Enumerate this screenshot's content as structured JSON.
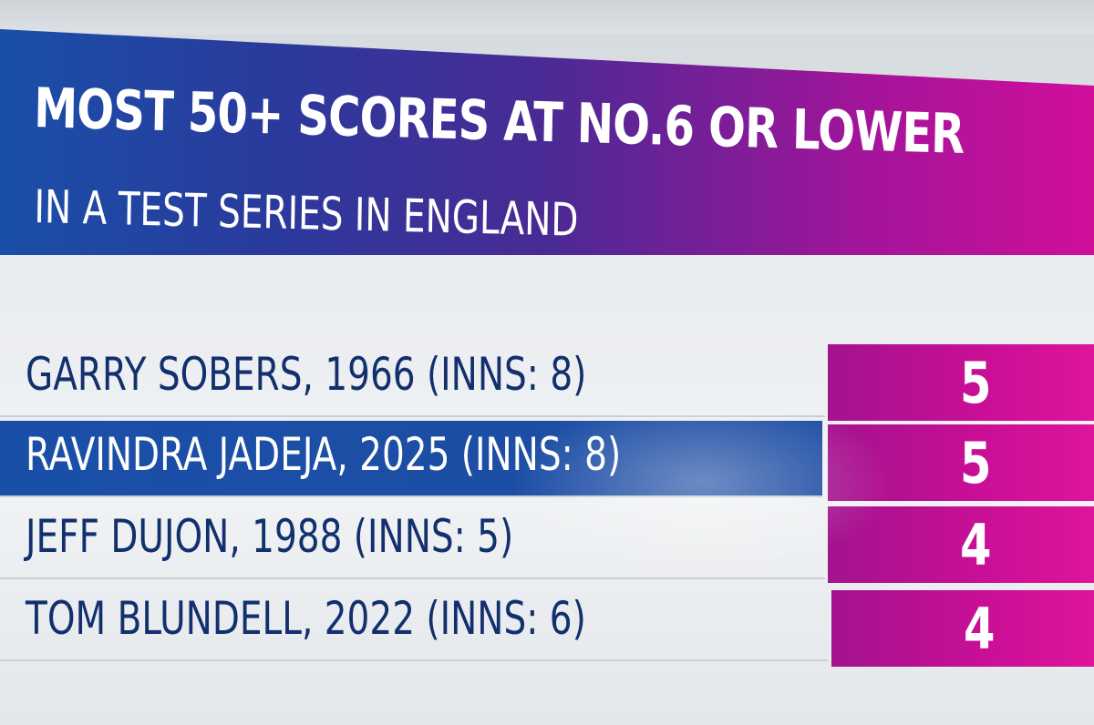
{
  "title": {
    "line1": "MOST 50+ SCORES AT NO.6 OR LOWER",
    "line2": "IN A TEST SERIES IN ENGLAND"
  },
  "rows": [
    {
      "label": "GARRY SOBERS, 1966 (INNS: 8)",
      "value": "5"
    },
    {
      "label": "RAVINDRA JADEJA, 2025 (INNS: 8)",
      "value": "5"
    },
    {
      "label": "JEFF DUJON, 1988 (INNS: 5)",
      "value": "4"
    },
    {
      "label": "TOM BLUNDELL, 2022 (INNS: 6)",
      "value": "4"
    }
  ],
  "colors": {
    "banner_blue": "#1a4fa8",
    "banner_magenta": "#d10e9a",
    "row_text": "#12306e",
    "value_box": "#c80f96",
    "highlight_row": "#1a4fa8"
  }
}
